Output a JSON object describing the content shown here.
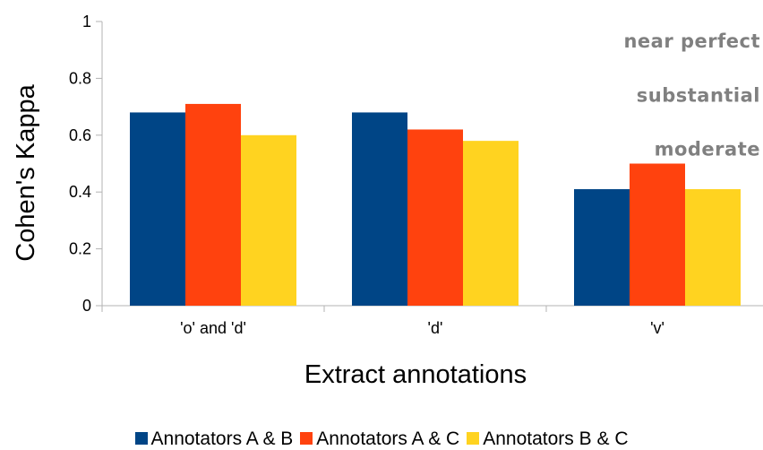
{
  "chart_data": {
    "type": "bar",
    "title": "",
    "xlabel": "Extract annotations",
    "ylabel": "Cohen's Kappa",
    "ylim": [
      0,
      1
    ],
    "yticks": [
      0,
      0.2,
      0.4,
      0.6,
      0.8,
      1
    ],
    "ytick_labels": [
      "0",
      "0.2",
      "0.4",
      "0.6",
      "0.8",
      "1"
    ],
    "categories": [
      "'o' and 'd'",
      "'d'",
      "'v'"
    ],
    "series": [
      {
        "name": "Annotators A & B",
        "color": "#004586",
        "values": [
          0.68,
          0.68,
          0.41
        ]
      },
      {
        "name": "Annotators A & C",
        "color": "#ff420e",
        "values": [
          0.71,
          0.62,
          0.5
        ]
      },
      {
        "name": "Annotators B & C",
        "color": "#ffd320",
        "values": [
          0.6,
          0.58,
          0.41
        ]
      }
    ],
    "annotations": [
      {
        "text": "near perfect",
        "y": 0.93
      },
      {
        "text": "substantial",
        "y": 0.74
      },
      {
        "text": "moderate",
        "y": 0.55
      }
    ],
    "grid": false,
    "legend_position": "bottom"
  }
}
